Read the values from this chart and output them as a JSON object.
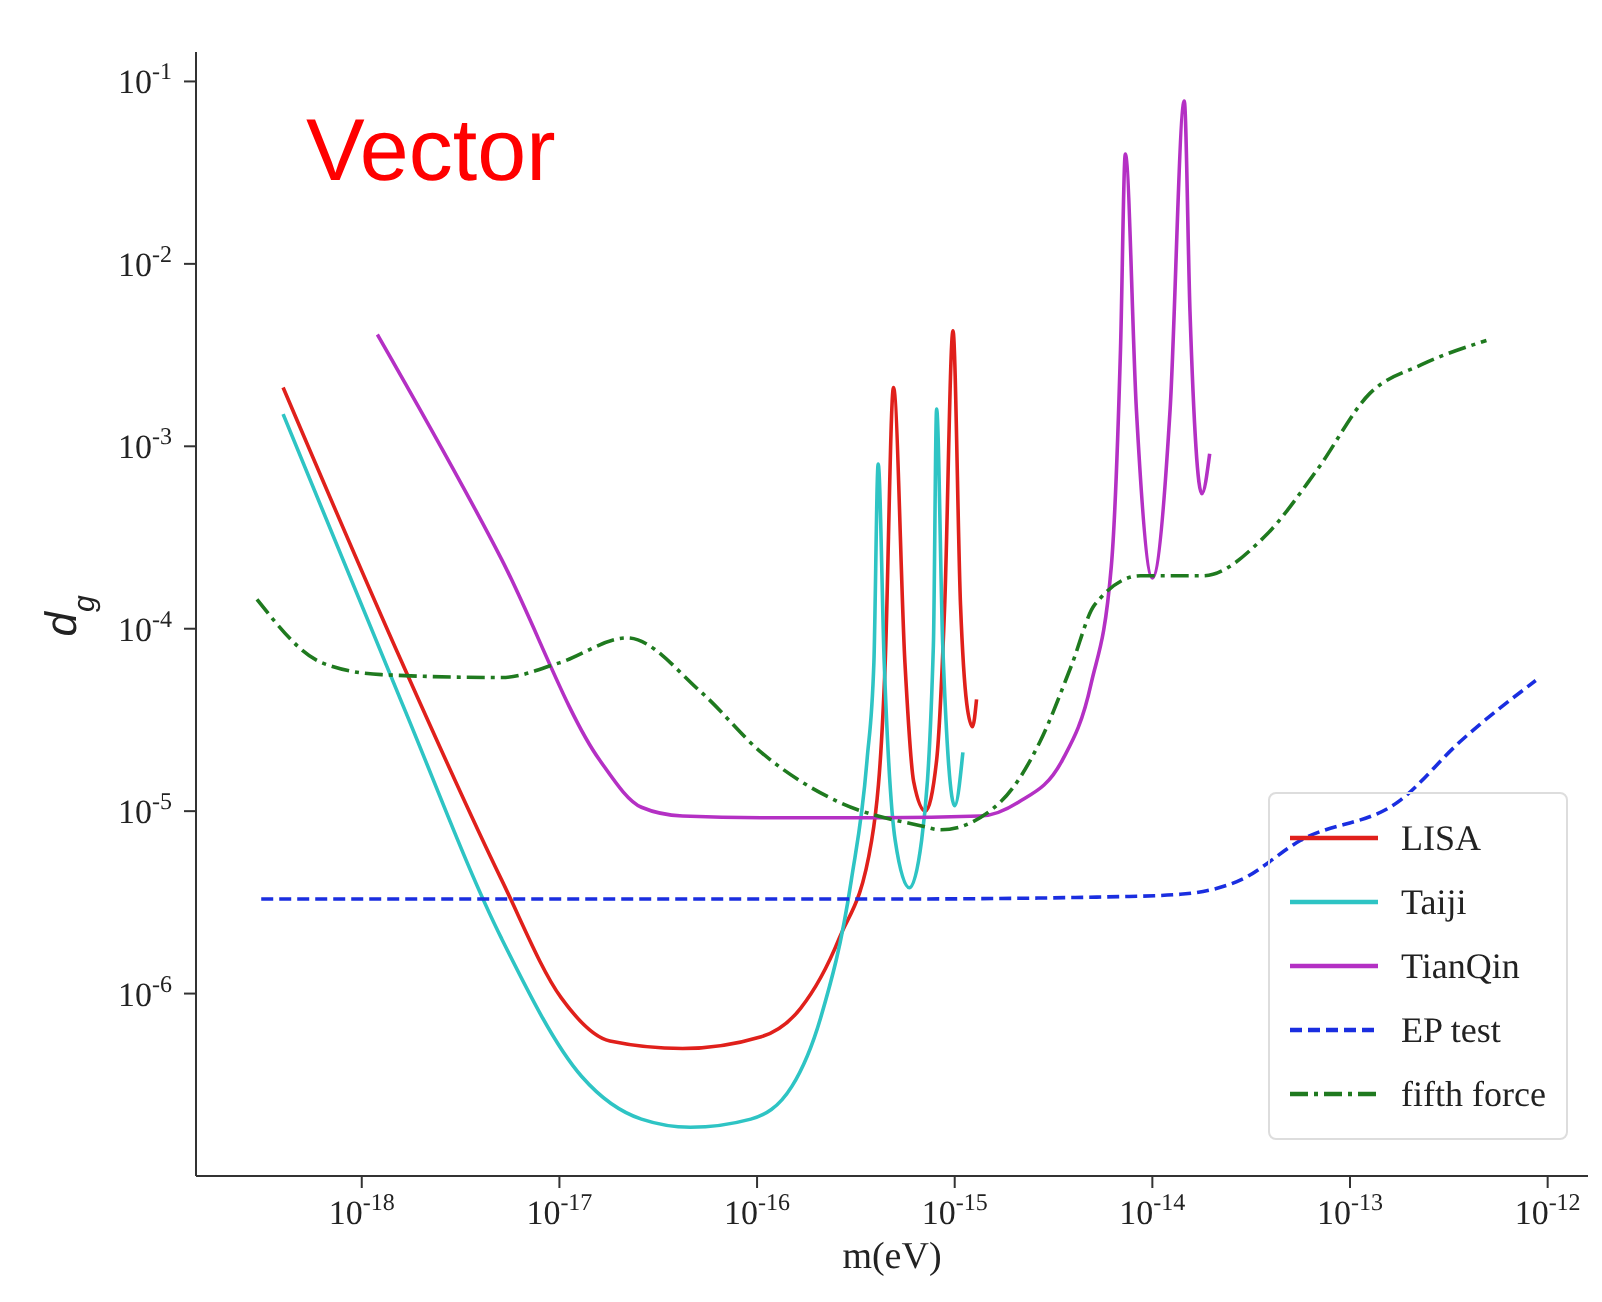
{
  "chart_data": {
    "type": "line",
    "title": "Vector",
    "xlabel": "m(eV)",
    "ylabel": "d$_{g}$",
    "log": "xy",
    "legend": "bottom right",
    "grid": false,
    "marker": "none",
    "xlim": [
      1.45e-19,
      1.6e-12
    ],
    "ylim": [
      1e-07,
      0.145
    ],
    "xticks": [
      {
        "value": 1e-18,
        "label": "10$^{-18}$"
      },
      {
        "value": 1e-17,
        "label": "10$^{-17}$"
      },
      {
        "value": 1e-16,
        "label": "10$^{-16}$"
      },
      {
        "value": 1e-15,
        "label": "10$^{-15}$"
      },
      {
        "value": 1e-14,
        "label": "10$^{-14}$"
      },
      {
        "value": 1e-13,
        "label": "10$^{-13}$"
      },
      {
        "value": 1e-12,
        "label": "10$^{-12}$"
      }
    ],
    "yticks": [
      {
        "value": 1e-06,
        "label": "10$^{-6}$"
      },
      {
        "value": 1e-05,
        "label": "10$^{-5}$"
      },
      {
        "value": 0.0001,
        "label": "10$^{-4}$"
      },
      {
        "value": 0.001,
        "label": "10$^{-3}$"
      },
      {
        "value": 0.01,
        "label": "10$^{-2}$"
      },
      {
        "value": 0.1,
        "label": "10$^{-1}$"
      }
    ],
    "series": [
      {
        "name": "LISA",
        "color": "#e0201b",
        "line_style": "solid",
        "x": [
          4e-19,
          1.6e-18,
          5.1e-18,
          1.02e-17,
          1.8e-17,
          4.2e-17,
          1.05e-16,
          1.66e-16,
          2.6e-16,
          3.8e-16,
          4.45e-16,
          4.9e-16,
          5.6e-16,
          6.2e-16,
          7.1e-16,
          8.1e-16,
          8.9e-16,
          9.8e-16,
          1.07e-15,
          1.15e-15,
          1.23e-15,
          1.29e-15
        ],
        "values": [
          0.0021,
          6.5e-05,
          4.2e-06,
          9.5e-07,
          5.5e-07,
          5e-07,
          5.8e-07,
          8.3e-07,
          2e-06,
          6.9e-06,
          6.5e-05,
          0.0021,
          6.5e-05,
          1.45e-05,
          1e-05,
          1.9e-05,
          0.000135,
          0.0043,
          0.000135,
          3.9e-05,
          2.9e-05,
          4.1e-05
        ]
      },
      {
        "name": "Taiji",
        "color": "#2ec4c4",
        "line_style": "solid",
        "x": [
          4e-19,
          1.6e-18,
          5.1e-18,
          1.3e-17,
          2.6e-17,
          4.6e-17,
          9.3e-17,
          1.5e-16,
          2.1e-16,
          3e-16,
          3.6e-16,
          3.9e-16,
          4.1e-16,
          4.4e-16,
          5e-16,
          5.9e-16,
          6.8e-16,
          7.8e-16,
          8.1e-16,
          8.7e-16,
          1e-15,
          1.1e-15
        ],
        "values": [
          0.0015,
          3.9e-05,
          2e-06,
          3.5e-07,
          2.05e-07,
          1.85e-07,
          2.05e-07,
          3.1e-07,
          7.4e-07,
          4.2e-06,
          1.9e-05,
          6.5e-05,
          0.0008,
          6.5e-05,
          6.9e-06,
          3.8e-06,
          6.9e-06,
          8.1e-05,
          0.0016,
          8.1e-05,
          1.07e-05,
          2.1e-05
        ]
      },
      {
        "name": "TianQin",
        "color": "#b430c4",
        "line_style": "solid",
        "x": [
          1.2e-18,
          5.1e-18,
          1.6e-17,
          2.6e-17,
          4.2e-17,
          1.05e-16,
          4.3e-16,
          1.35e-15,
          2.1e-15,
          3.5e-15,
          4.9e-15,
          6.2e-15,
          6.9e-15,
          7.3e-15,
          8.3e-15,
          1e-14,
          1.23e-14,
          1.45e-14,
          1.55e-14,
          1.78e-14,
          1.95e-14
        ],
        "values": [
          0.0041,
          0.00024,
          1.9e-05,
          1.05e-05,
          9.4e-06,
          9.2e-06,
          9.2e-06,
          9.4e-06,
          1.12e-05,
          1.9e-05,
          5e-05,
          0.00022,
          0.0034,
          0.04,
          0.0016,
          0.00019,
          0.0016,
          0.078,
          0.0055,
          0.00055,
          0.00091
        ]
      },
      {
        "name": "EP test",
        "color": "#1a2ee0",
        "line_style": "dashed",
        "x": [
          3.1e-19,
          5.4e-16,
          6.9e-15,
          1.38e-14,
          2.8e-14,
          5.6e-14,
          1.8e-13,
          3.6e-13,
          8.7e-13
        ],
        "values": [
          3.3e-06,
          3.3e-06,
          3.4e-06,
          3.5e-06,
          4.2e-06,
          6.9e-06,
          1.15e-05,
          2.4e-05,
          5.2e-05
        ]
      },
      {
        "name": "fifth force",
        "color": "#1f7a1f",
        "line_style": "dashdot",
        "x": [
          2.95e-19,
          6.3e-19,
          1.26e-18,
          5.1e-18,
          1e-17,
          2.2e-17,
          5.2e-17,
          1.05e-16,
          2.6e-16,
          6.8e-16,
          8.5e-16,
          1.7e-15,
          2.7e-15,
          3.9e-15,
          5.1e-15,
          8.7e-15,
          1.8e-14,
          3.7e-14,
          6.8e-14,
          1.26e-13,
          2.3e-13,
          4.9e-13
        ],
        "values": [
          0.000145,
          6.5e-05,
          5.6e-05,
          5.4e-05,
          6.5e-05,
          8.9e-05,
          4.5e-05,
          2.1e-05,
          1.12e-05,
          8.3e-06,
          7.9e-06,
          1.12e-05,
          2.4e-05,
          6.3e-05,
          0.000135,
          0.000195,
          0.000195,
          0.00032,
          0.00074,
          0.00195,
          0.0028,
          0.0038
        ]
      }
    ]
  }
}
